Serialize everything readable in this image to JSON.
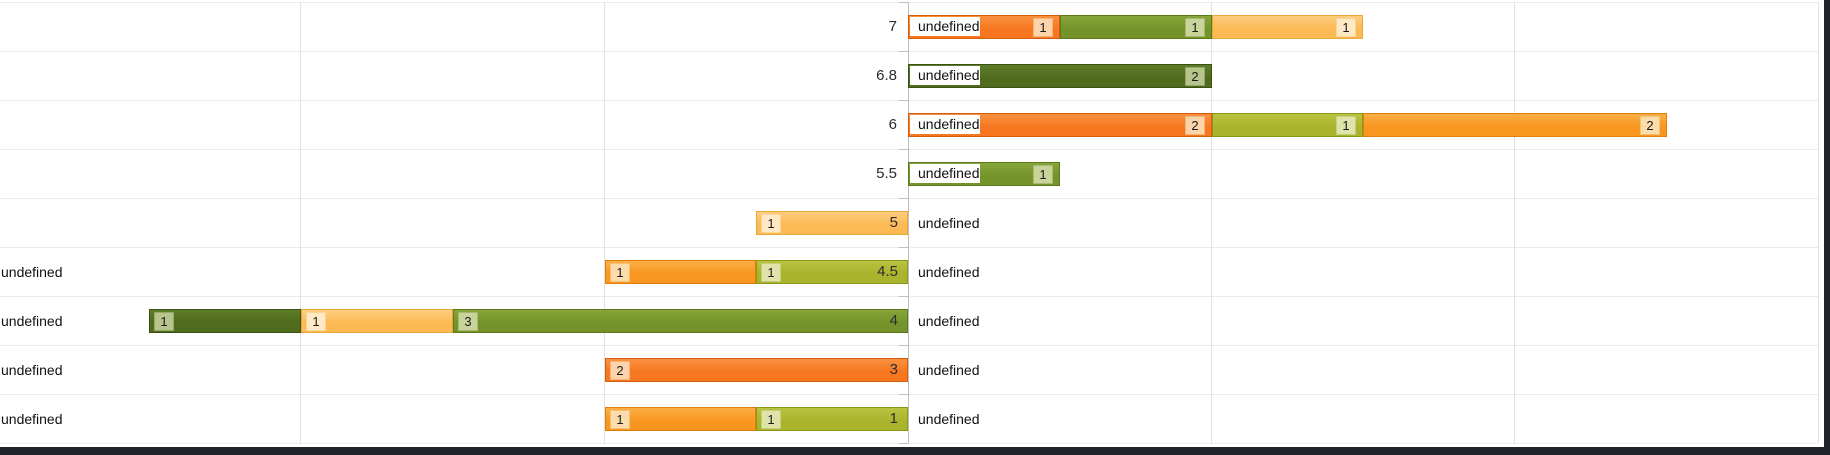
{
  "chart_data": {
    "type": "bar",
    "orientation": "horizontal-diverging-stacked",
    "category_label": "undefined",
    "rows": [
      {
        "label": "7",
        "side": "right",
        "name": "undefined",
        "left_edge_label": false,
        "segments": [
          {
            "value": 1,
            "color": "deep_orange"
          },
          {
            "value": 1,
            "color": "olive"
          },
          {
            "value": 1,
            "color": "amber"
          }
        ]
      },
      {
        "label": "6.8",
        "side": "right",
        "name": "undefined",
        "left_edge_label": false,
        "segments": [
          {
            "value": 2,
            "color": "dark_olive"
          }
        ]
      },
      {
        "label": "6",
        "side": "right",
        "name": "undefined",
        "left_edge_label": false,
        "segments": [
          {
            "value": 2,
            "color": "deep_orange"
          },
          {
            "value": 1,
            "color": "yellow_green"
          },
          {
            "value": 2,
            "color": "bright_orange"
          }
        ]
      },
      {
        "label": "5.5",
        "side": "right",
        "name": "undefined",
        "left_edge_label": false,
        "segments": [
          {
            "value": 1,
            "color": "olive"
          }
        ]
      },
      {
        "label": "5",
        "side": "left",
        "name": "undefined",
        "left_edge_label": false,
        "segments": [
          {
            "value": 1,
            "color": "amber"
          }
        ]
      },
      {
        "label": "4.5",
        "side": "left",
        "name": "undefined",
        "left_edge_label": true,
        "segments": [
          {
            "value": 1,
            "color": "bright_orange"
          },
          {
            "value": 1,
            "color": "yellow_green"
          }
        ]
      },
      {
        "label": "4",
        "side": "left",
        "name": "undefined",
        "left_edge_label": true,
        "segments": [
          {
            "value": 1,
            "color": "dark_olive"
          },
          {
            "value": 1,
            "color": "amber"
          },
          {
            "value": 3,
            "color": "olive"
          }
        ]
      },
      {
        "label": "3",
        "side": "left",
        "name": "undefined",
        "left_edge_label": true,
        "segments": [
          {
            "value": 2,
            "color": "deep_orange"
          }
        ]
      },
      {
        "label": "1",
        "side": "left",
        "name": "undefined",
        "left_edge_label": true,
        "segments": [
          {
            "value": 1,
            "color": "bright_orange"
          },
          {
            "value": 1,
            "color": "yellow_green"
          }
        ]
      }
    ],
    "palette": {
      "deep_orange": {
        "fill": "#f6771f",
        "top": "#fa9140",
        "border": "#d55d0e",
        "box_bg": "#fcd3ab",
        "box_border": "#f3b678"
      },
      "bright_orange": {
        "fill": "#f8961f",
        "top": "#fbae45",
        "border": "#dd7f0b",
        "box_bg": "#fcdcaa",
        "box_border": "#f4c276"
      },
      "amber": {
        "fill": "#fcba54",
        "top": "#fdcd80",
        "border": "#e8a835",
        "box_bg": "#fee9c4",
        "box_border": "#f8d694"
      },
      "yellow_green": {
        "fill": "#a9b32c",
        "top": "#bac340",
        "border": "#8d9718",
        "box_bg": "#dfe3a9",
        "box_border": "#c6cd7c"
      },
      "olive": {
        "fill": "#74932a",
        "top": "#86a63a",
        "border": "#5c7a1b",
        "box_bg": "#c9d49b",
        "box_border": "#a9b871"
      },
      "dark_olive": {
        "fill": "#4e6b1e",
        "top": "#5e7d28",
        "border": "#3b5112",
        "box_bg": "#b7c48c",
        "box_border": "#97a768"
      }
    },
    "axis": {
      "center": 0,
      "unit": 1,
      "gridline_step": 2,
      "grid_on": true
    }
  }
}
